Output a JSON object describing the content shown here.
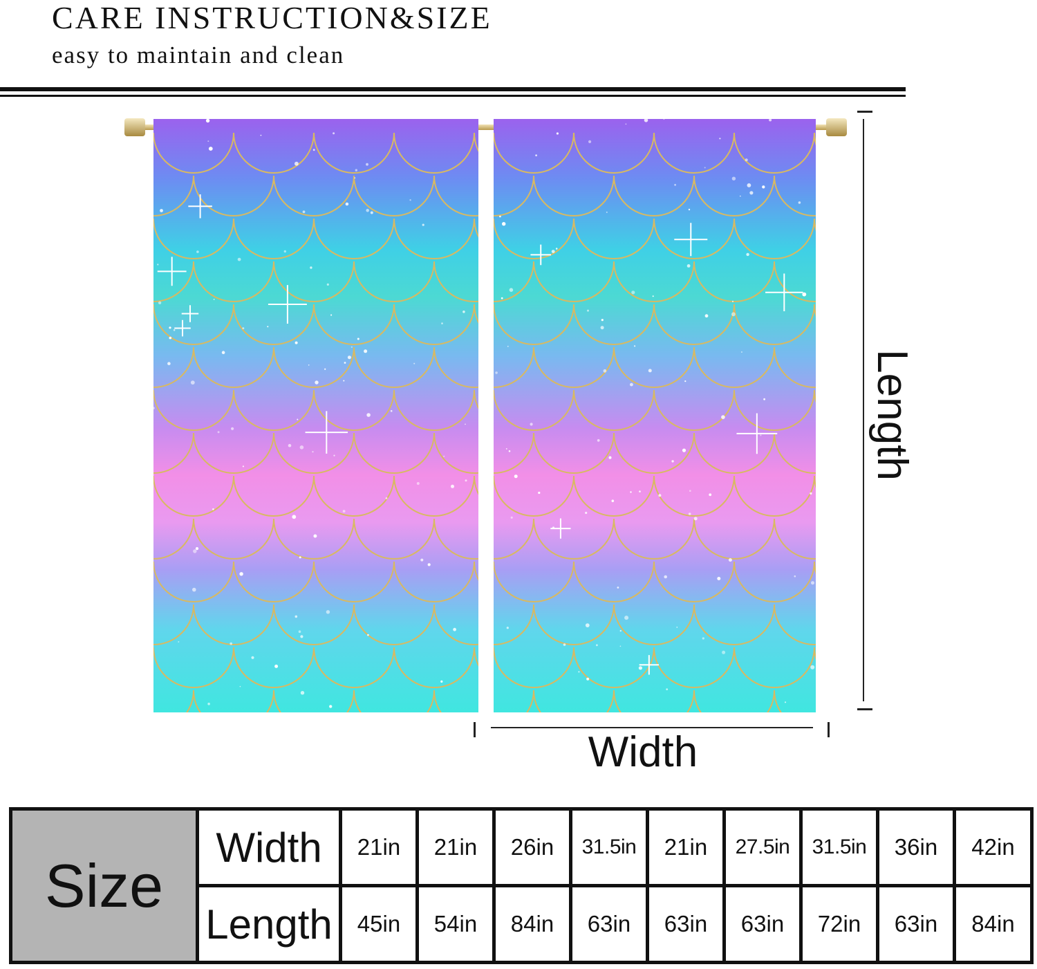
{
  "header": {
    "title": "CARE INSTRUCTION&SIZE",
    "subtitle": "easy to maintain and clean"
  },
  "diagram": {
    "length_label": "Length",
    "width_label": "Width",
    "panel_colors": [
      "#9b62ee",
      "#3fd0e6",
      "#f28fe7",
      "#40e6e0"
    ],
    "scale_line_color": "#d8b962"
  },
  "size_table": {
    "header_label": "Size",
    "width_label": "Width",
    "length_label": "Length",
    "widths": [
      "21in",
      "21in",
      "26in",
      "31.5in",
      "21in",
      "27.5in",
      "31.5in",
      "36in",
      "42in"
    ],
    "lengths": [
      "45in",
      "54in",
      "84in",
      "63in",
      "63in",
      "63in",
      "72in",
      "63in",
      "84in"
    ]
  }
}
